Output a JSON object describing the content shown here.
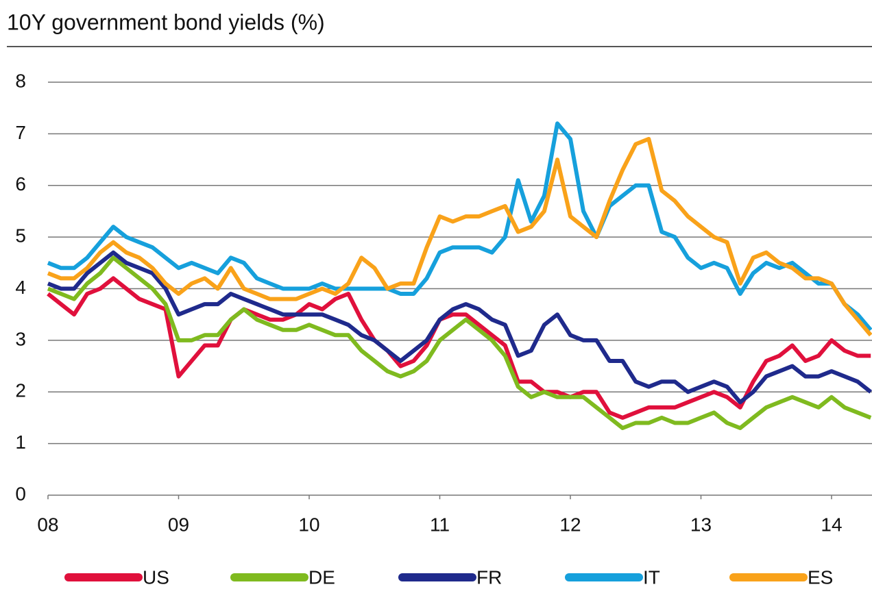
{
  "chart_data": {
    "type": "line",
    "title": "10Y government bond yields (%)",
    "x": [
      8.0,
      8.1,
      8.2,
      8.3,
      8.4,
      8.5,
      8.6,
      8.7,
      8.8,
      8.9,
      9.0,
      9.1,
      9.2,
      9.3,
      9.4,
      9.5,
      9.6,
      9.7,
      9.8,
      9.9,
      10.0,
      10.1,
      10.2,
      10.3,
      10.4,
      10.5,
      10.6,
      10.7,
      10.8,
      10.9,
      11.0,
      11.1,
      11.2,
      11.3,
      11.4,
      11.5,
      11.6,
      11.7,
      11.8,
      11.9,
      12.0,
      12.1,
      12.2,
      12.3,
      12.4,
      12.5,
      12.6,
      12.7,
      12.8,
      12.9,
      13.0,
      13.1,
      13.2,
      13.3,
      13.4,
      13.5,
      13.6,
      13.7,
      13.8,
      13.9,
      14.0,
      14.1,
      14.2,
      14.3
    ],
    "series": [
      {
        "name": "US",
        "color": "#e0103c",
        "values": [
          3.9,
          3.7,
          3.5,
          3.9,
          4.0,
          4.2,
          4.0,
          3.8,
          3.7,
          3.6,
          2.3,
          2.6,
          2.9,
          2.9,
          3.4,
          3.6,
          3.5,
          3.4,
          3.4,
          3.5,
          3.7,
          3.6,
          3.8,
          3.9,
          3.4,
          3.0,
          2.8,
          2.5,
          2.6,
          2.9,
          3.4,
          3.5,
          3.5,
          3.3,
          3.1,
          2.9,
          2.2,
          2.2,
          2.0,
          2.0,
          1.9,
          2.0,
          2.0,
          1.6,
          1.5,
          1.6,
          1.7,
          1.7,
          1.7,
          1.8,
          1.9,
          2.0,
          1.9,
          1.7,
          2.2,
          2.6,
          2.7,
          2.9,
          2.6,
          2.7,
          3.0,
          2.8,
          2.7,
          2.7
        ]
      },
      {
        "name": "DE",
        "color": "#7fba1f",
        "values": [
          4.0,
          3.9,
          3.8,
          4.1,
          4.3,
          4.6,
          4.4,
          4.2,
          4.0,
          3.7,
          3.0,
          3.0,
          3.1,
          3.1,
          3.4,
          3.6,
          3.4,
          3.3,
          3.2,
          3.2,
          3.3,
          3.2,
          3.1,
          3.1,
          2.8,
          2.6,
          2.4,
          2.3,
          2.4,
          2.6,
          3.0,
          3.2,
          3.4,
          3.2,
          3.0,
          2.7,
          2.1,
          1.9,
          2.0,
          1.9,
          1.9,
          1.9,
          1.7,
          1.5,
          1.3,
          1.4,
          1.4,
          1.5,
          1.4,
          1.4,
          1.5,
          1.6,
          1.4,
          1.3,
          1.5,
          1.7,
          1.8,
          1.9,
          1.8,
          1.7,
          1.9,
          1.7,
          1.6,
          1.5
        ]
      },
      {
        "name": "FR",
        "color": "#1f2a8c",
        "values": [
          4.1,
          4.0,
          4.0,
          4.3,
          4.5,
          4.7,
          4.5,
          4.4,
          4.3,
          4.0,
          3.5,
          3.6,
          3.7,
          3.7,
          3.9,
          3.8,
          3.7,
          3.6,
          3.5,
          3.5,
          3.5,
          3.5,
          3.4,
          3.3,
          3.1,
          3.0,
          2.8,
          2.6,
          2.8,
          3.0,
          3.4,
          3.6,
          3.7,
          3.6,
          3.4,
          3.3,
          2.7,
          2.8,
          3.3,
          3.5,
          3.1,
          3.0,
          3.0,
          2.6,
          2.6,
          2.2,
          2.1,
          2.2,
          2.2,
          2.0,
          2.1,
          2.2,
          2.1,
          1.8,
          2.0,
          2.3,
          2.4,
          2.5,
          2.3,
          2.3,
          2.4,
          2.3,
          2.2,
          2.0
        ]
      },
      {
        "name": "IT",
        "color": "#16a0dc",
        "values": [
          4.5,
          4.4,
          4.4,
          4.6,
          4.9,
          5.2,
          5.0,
          4.9,
          4.8,
          4.6,
          4.4,
          4.5,
          4.4,
          4.3,
          4.6,
          4.5,
          4.2,
          4.1,
          4.0,
          4.0,
          4.0,
          4.1,
          4.0,
          4.0,
          4.0,
          4.0,
          4.0,
          3.9,
          3.9,
          4.2,
          4.7,
          4.8,
          4.8,
          4.8,
          4.7,
          5.0,
          6.1,
          5.3,
          5.8,
          7.2,
          6.9,
          5.5,
          5.0,
          5.6,
          5.8,
          6.0,
          6.0,
          5.1,
          5.0,
          4.6,
          4.4,
          4.5,
          4.4,
          3.9,
          4.3,
          4.5,
          4.4,
          4.5,
          4.3,
          4.1,
          4.1,
          3.7,
          3.5,
          3.2
        ]
      },
      {
        "name": "ES",
        "color": "#f9a21a",
        "values": [
          4.3,
          4.2,
          4.2,
          4.4,
          4.7,
          4.9,
          4.7,
          4.6,
          4.4,
          4.1,
          3.9,
          4.1,
          4.2,
          4.0,
          4.4,
          4.0,
          3.9,
          3.8,
          3.8,
          3.8,
          3.9,
          4.0,
          3.9,
          4.1,
          4.6,
          4.4,
          4.0,
          4.1,
          4.1,
          4.8,
          5.4,
          5.3,
          5.4,
          5.4,
          5.5,
          5.6,
          5.1,
          5.2,
          5.5,
          6.5,
          5.4,
          5.2,
          5.0,
          5.7,
          6.3,
          6.8,
          6.9,
          5.9,
          5.7,
          5.4,
          5.2,
          5.0,
          4.9,
          4.1,
          4.6,
          4.7,
          4.5,
          4.4,
          4.2,
          4.2,
          4.1,
          3.7,
          3.4,
          3.1
        ]
      }
    ],
    "xlim": [
      8,
      14.31
    ],
    "xticks": [
      {
        "value": 8,
        "label": "08"
      },
      {
        "value": 9,
        "label": "09"
      },
      10,
      11,
      12,
      13,
      14
    ],
    "ylim": [
      0,
      8
    ],
    "yticks": [
      0,
      1,
      2,
      3,
      4,
      5,
      6,
      7,
      8
    ],
    "grid": true,
    "legend": "bottom"
  }
}
